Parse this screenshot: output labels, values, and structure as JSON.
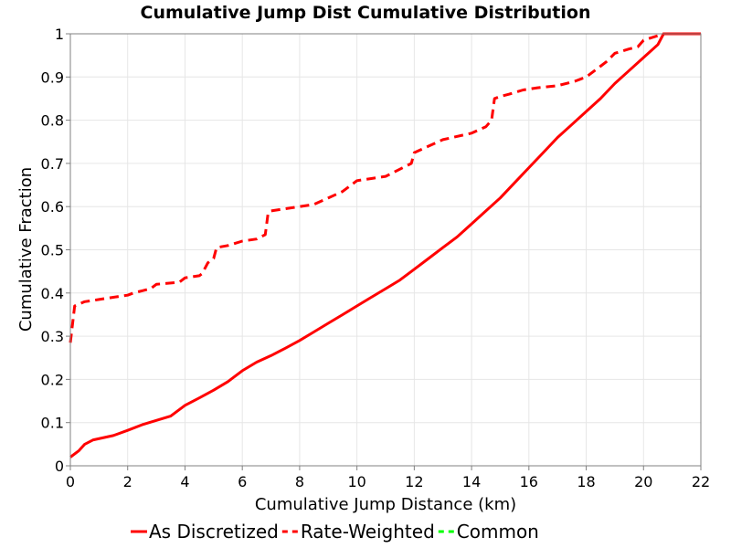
{
  "chart_data": {
    "type": "line",
    "title": "Cumulative Jump Dist Cumulative Distribution",
    "xlabel": "Cumulative Jump Distance (km)",
    "ylabel": "Cumulative Fraction",
    "xlim": [
      0,
      22
    ],
    "ylim": [
      0,
      1
    ],
    "xticks": [
      "0",
      "2",
      "4",
      "6",
      "8",
      "10",
      "12",
      "14",
      "16",
      "18",
      "20",
      "22"
    ],
    "yticks": [
      "0",
      "0.1",
      "0.2",
      "0.3",
      "0.4",
      "0.5",
      "0.6",
      "0.7",
      "0.8",
      "0.9",
      "1"
    ],
    "grid": true,
    "legend_position": "bottom",
    "series": [
      {
        "name": "As Discretized",
        "color": "#ff0000",
        "style": "solid",
        "x": [
          0,
          0.3,
          0.5,
          0.8,
          1.5,
          2,
          2.5,
          3,
          3.5,
          4,
          4.5,
          5,
          5.5,
          6,
          6.5,
          7,
          7.5,
          8,
          8.5,
          9,
          9.5,
          10,
          10.5,
          11,
          11.5,
          12,
          12.5,
          13,
          13.5,
          14,
          14.5,
          15,
          15.5,
          16,
          16.5,
          17,
          17.5,
          18,
          18.5,
          19,
          19.5,
          20,
          20.5,
          20.7,
          22
        ],
        "y": [
          0.02,
          0.035,
          0.05,
          0.06,
          0.07,
          0.082,
          0.095,
          0.105,
          0.115,
          0.14,
          0.157,
          0.175,
          0.195,
          0.22,
          0.24,
          0.255,
          0.272,
          0.29,
          0.31,
          0.33,
          0.35,
          0.37,
          0.39,
          0.41,
          0.43,
          0.455,
          0.48,
          0.505,
          0.53,
          0.56,
          0.59,
          0.62,
          0.655,
          0.69,
          0.725,
          0.76,
          0.79,
          0.82,
          0.85,
          0.885,
          0.915,
          0.945,
          0.975,
          1.0,
          1.0
        ]
      },
      {
        "name": "Rate-Weighted",
        "color": "#ff0000",
        "style": "dashed",
        "x": [
          0,
          0.08,
          0.15,
          0.5,
          1,
          1.5,
          2,
          2.2,
          2.5,
          2.8,
          3,
          3.8,
          4,
          4.5,
          4.6,
          4.8,
          5,
          5.1,
          5.5,
          6,
          6.5,
          6.8,
          6.9,
          7,
          7.5,
          8.5,
          9,
          9.5,
          9.7,
          10,
          10.5,
          11,
          11.3,
          11.9,
          12,
          12.5,
          13,
          14,
          14.5,
          14.7,
          14.8,
          15,
          15.3,
          15.8,
          16.3,
          17,
          17.6,
          18,
          18.2,
          18.5,
          18.7,
          19,
          19.5,
          19.8,
          20,
          20.7,
          22
        ],
        "y": [
          0.285,
          0.33,
          0.37,
          0.38,
          0.385,
          0.39,
          0.395,
          0.4,
          0.405,
          0.41,
          0.42,
          0.425,
          0.435,
          0.44,
          0.445,
          0.47,
          0.48,
          0.505,
          0.51,
          0.52,
          0.525,
          0.535,
          0.585,
          0.59,
          0.595,
          0.605,
          0.62,
          0.635,
          0.645,
          0.66,
          0.665,
          0.67,
          0.68,
          0.7,
          0.725,
          0.74,
          0.755,
          0.77,
          0.785,
          0.8,
          0.85,
          0.855,
          0.86,
          0.87,
          0.875,
          0.88,
          0.89,
          0.9,
          0.91,
          0.925,
          0.935,
          0.955,
          0.965,
          0.97,
          0.985,
          1.0,
          1.0
        ]
      },
      {
        "name": "Common",
        "color": "#00ff00",
        "style": "dashed",
        "x": [],
        "y": []
      }
    ]
  }
}
